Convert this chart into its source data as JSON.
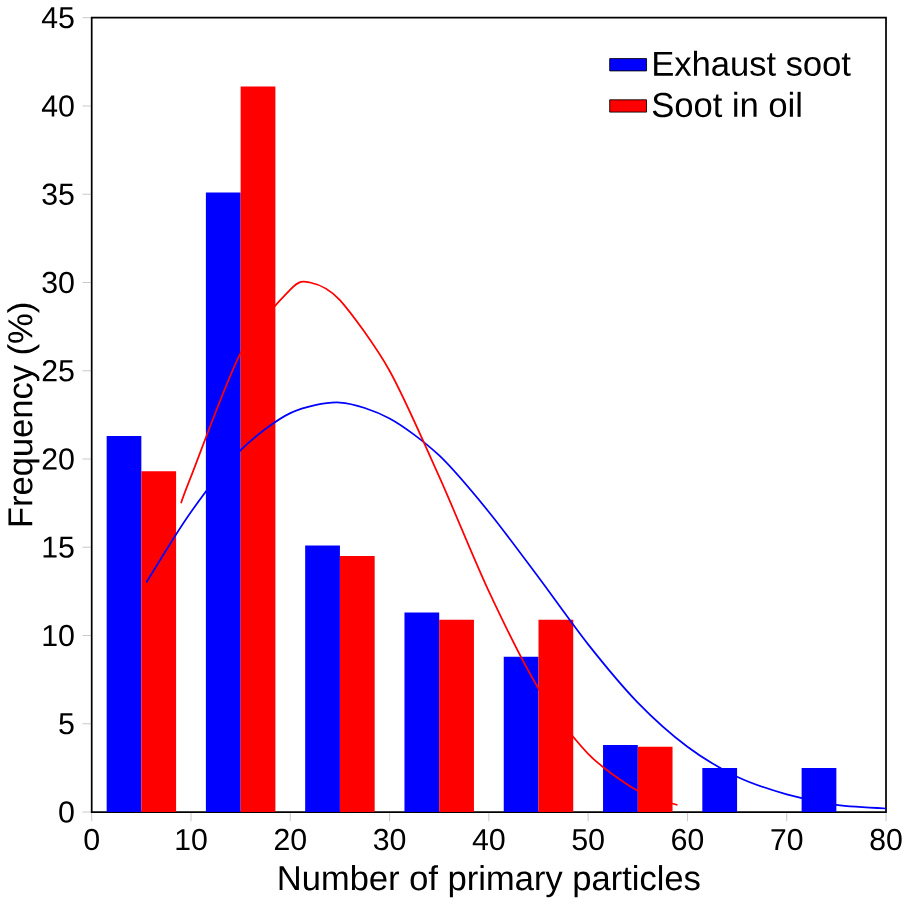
{
  "chart_data": {
    "type": "bar",
    "xlabel": "Number of primary particles",
    "ylabel": "Frequency (%)",
    "x": [
      5,
      15,
      25,
      35,
      45,
      55,
      65,
      75
    ],
    "series": [
      {
        "name": "Exhaust soot",
        "color": "#0000ff",
        "values": [
          21.3,
          35.1,
          15.1,
          11.3,
          8.8,
          3.8,
          2.5,
          2.5
        ]
      },
      {
        "name": "Soot in oil",
        "color": "#ff0000",
        "values": [
          19.3,
          41.1,
          14.5,
          10.9,
          10.9,
          3.7,
          0,
          0
        ]
      },
      {
        "type": "line",
        "color": "#0000ff",
        "x": [
          5.5,
          10,
          15,
          20,
          25,
          30,
          35,
          40,
          45,
          50,
          55,
          60,
          65,
          70,
          75,
          80
        ],
        "values": [
          13,
          17,
          20.5,
          22.6,
          23.2,
          22.3,
          20.2,
          17,
          13.3,
          9.5,
          6.2,
          3.7,
          2,
          1,
          0.4,
          0.2
        ]
      },
      {
        "type": "line",
        "color": "#ff0000",
        "x": [
          9,
          10,
          15,
          20,
          22,
          25,
          30,
          35,
          40,
          45,
          50,
          55,
          59
        ],
        "values": [
          17.5,
          19,
          26,
          29.6,
          30,
          29,
          25,
          19,
          12.5,
          7,
          3.3,
          1.2,
          0.4
        ]
      }
    ],
    "xlim": [
      0,
      80
    ],
    "xticks": [
      0,
      10,
      20,
      30,
      40,
      50,
      60,
      70,
      80
    ],
    "ylim": [
      0,
      45
    ],
    "yticks": [
      0,
      5,
      10,
      15,
      20,
      25,
      30,
      35,
      40,
      45
    ],
    "legend": "top right",
    "grid": false
  }
}
